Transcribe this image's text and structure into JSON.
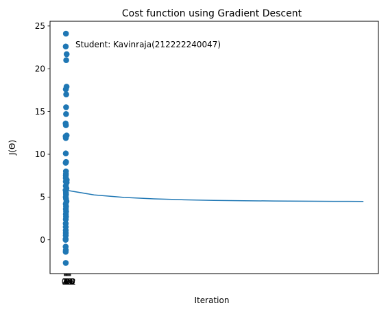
{
  "chart_data": {
    "type": "scatter",
    "title": "Cost function using Gradient Descent",
    "xlabel": "Iteration",
    "ylabel": "J(Θ)",
    "annotation": "Student: Kavinraja(212222240047)",
    "grid": false,
    "legend": "none",
    "xlim": [
      -47,
      1050
    ],
    "ylim": [
      -3.95,
      25.55
    ],
    "x_ticks": [
      0,
      2,
      4,
      6,
      8,
      10,
      12,
      14,
      16,
      18,
      20,
      22
    ],
    "x_tick_labels": [
      "0",
      "2",
      "4",
      "6",
      "8",
      "10",
      "12",
      "14",
      "16",
      "18",
      "20",
      "22"
    ],
    "y_ticks": [
      0,
      5,
      10,
      15,
      20,
      25
    ],
    "colors": {
      "series": "#1f77b4"
    },
    "series": [
      {
        "type": "scatter",
        "x": [
          6.1,
          5.5,
          8.5,
          7.0,
          5.8,
          8.2,
          7.0,
          6.6,
          6.5,
          5.1,
          6.0,
          5.1,
          5.7,
          8.4,
          5.6,
          6.5,
          5.3,
          6.1,
          5.7,
          6.0,
          5.7,
          8.7,
          5.7,
          8.5,
          5.6,
          7.6,
          5.0,
          6.0,
          6.3,
          5.5,
          6.2,
          7.9,
          5.5,
          6.4,
          5.8,
          6.6,
          5.8,
          6.3,
          5.6,
          5.4,
          5.5,
          5.5,
          5.6,
          5.5,
          5.1,
          5.1,
          5.2,
          5.6,
          5.3,
          5.5
        ],
        "y": [
          24.1,
          22.6,
          21.7,
          21.0,
          17.6,
          17.9,
          17.0,
          15.5,
          14.7,
          13.6,
          13.4,
          12.1,
          11.9,
          12.2,
          10.1,
          9.1,
          9.0,
          8.0,
          7.5,
          7.7,
          7.2,
          7.0,
          6.8,
          6.7,
          6.3,
          6.0,
          5.8,
          5.5,
          5.3,
          5.0,
          4.8,
          4.5,
          4.2,
          3.9,
          3.6,
          3.3,
          3.0,
          2.7,
          2.4,
          1.9,
          1.5,
          1.1,
          0.8,
          0.5,
          0.1,
          0.0,
          -0.8,
          -1.2,
          -1.4,
          -2.7
        ]
      },
      {
        "type": "line",
        "x": [
          0,
          100,
          200,
          300,
          400,
          500,
          600,
          700,
          800,
          900,
          1000
        ],
        "y": [
          5.84,
          5.25,
          4.96,
          4.79,
          4.68,
          4.61,
          4.57,
          4.54,
          4.52,
          4.5,
          4.49
        ]
      }
    ]
  }
}
